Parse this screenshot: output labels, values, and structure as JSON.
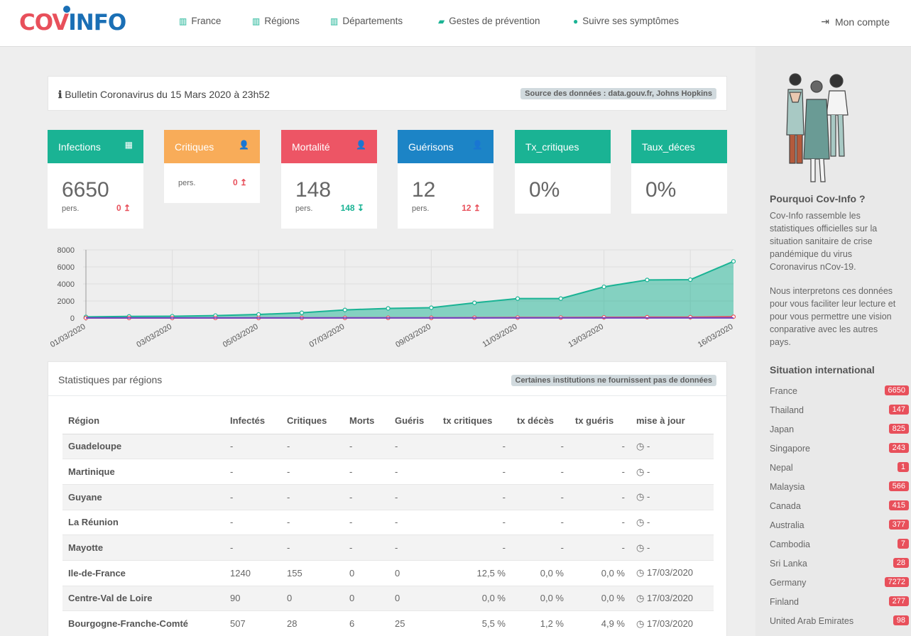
{
  "header": {
    "logo_cov": "COV",
    "logo_info": "INFO",
    "nav": [
      "France",
      "Régions",
      "Départements",
      "Gestes de prévention",
      "Suivre ses symptômes"
    ],
    "account": "Mon compte"
  },
  "bulletin": {
    "title": "Bulletin Coronavirus du 15 Mars 2020 à 23h52",
    "source": "Source des données : data.gouv.fr, Johns Hopkins"
  },
  "cards": [
    {
      "label": "Infections",
      "value": "6650",
      "unit": "pers.",
      "delta": "0 ↥",
      "color": "#1ab394",
      "delta_color": "#e8505b"
    },
    {
      "label": "Critiques",
      "value": "",
      "unit": "pers.",
      "delta": "0 ↥",
      "color": "#f8ac59",
      "delta_color": "#e8505b"
    },
    {
      "label": "Mortalité",
      "value": "148",
      "unit": "pers.",
      "delta": "148 ↧",
      "color": "#ed5565",
      "delta_color": "#1ab394"
    },
    {
      "label": "Guérisons",
      "value": "12",
      "unit": "pers.",
      "delta": "12 ↥",
      "color": "#1c84c6",
      "delta_color": "#e8505b"
    },
    {
      "label": "Tx_critiques",
      "value": "0%",
      "unit": "",
      "delta": "",
      "color": "#1ab394",
      "delta_color": "#e8505b"
    },
    {
      "label": "Taux_déces",
      "value": "0%",
      "unit": "",
      "delta": "",
      "color": "#1ab394",
      "delta_color": "#e8505b"
    }
  ],
  "chart_data": {
    "type": "area",
    "x": [
      "01/03/2020",
      "02/03/2020",
      "03/03/2020",
      "04/03/2020",
      "05/03/2020",
      "06/03/2020",
      "07/03/2020",
      "08/03/2020",
      "09/03/2020",
      "10/03/2020",
      "11/03/2020",
      "12/03/2020",
      "13/03/2020",
      "14/03/2020",
      "15/03/2020",
      "16/03/2020"
    ],
    "tick_labels": [
      "01/03/2020",
      "03/03/2020",
      "05/03/2020",
      "07/03/2020",
      "09/03/2020",
      "11/03/2020",
      "13/03/2020",
      "16/03/2020"
    ],
    "yticks": [
      "8000",
      "6000",
      "4000",
      "2000",
      "0"
    ],
    "ylim": [
      0,
      8000
    ],
    "series": [
      {
        "values": [
          130,
          190,
          212,
          285,
          420,
          613,
          949,
          1126,
          1209,
          1784,
          2281,
          2281,
          3661,
          4469,
          4499,
          6650
        ],
        "color": "#1ab394"
      },
      {
        "values": [
          2,
          2,
          4,
          4,
          7,
          9,
          16,
          19,
          19,
          33,
          48,
          48,
          79,
          91,
          91,
          148
        ],
        "color": "#e8505b"
      },
      {
        "values": [
          12,
          12,
          12,
          12,
          12,
          12,
          12,
          12,
          12,
          12,
          12,
          12,
          12,
          12,
          12,
          12
        ],
        "color": "#6f42c1"
      }
    ]
  },
  "regions": {
    "title": "Statistiques par régions",
    "note": "Certaines institutions ne fournissent pas de données",
    "headers": [
      "Région",
      "Infectés",
      "Critiques",
      "Morts",
      "Guéris",
      "tx critiques",
      "tx décès",
      "tx guéris",
      "mise à jour"
    ],
    "rows": [
      [
        "Guadeloupe",
        "-",
        "-",
        "-",
        "-",
        "-",
        "-",
        "-",
        "-"
      ],
      [
        "Martinique",
        "-",
        "-",
        "-",
        "-",
        "-",
        "-",
        "-",
        "-"
      ],
      [
        "Guyane",
        "-",
        "-",
        "-",
        "-",
        "-",
        "-",
        "-",
        "-"
      ],
      [
        "La Réunion",
        "-",
        "-",
        "-",
        "-",
        "-",
        "-",
        "-",
        "-"
      ],
      [
        "Mayotte",
        "-",
        "-",
        "-",
        "-",
        "-",
        "-",
        "-",
        "-"
      ],
      [
        "Ile-de-France",
        "1240",
        "155",
        "0",
        "0",
        "12,5 %",
        "0,0 %",
        "0,0 %",
        "17/03/2020"
      ],
      [
        "Centre-Val de Loire",
        "90",
        "0",
        "0",
        "0",
        "0,0 %",
        "0,0 %",
        "0,0 %",
        "17/03/2020"
      ],
      [
        "Bourgogne-Franche-Comté",
        "507",
        "28",
        "6",
        "25",
        "5,5 %",
        "1,2 %",
        "4,9 %",
        "17/03/2020"
      ]
    ]
  },
  "sidebar": {
    "why_title": "Pourquoi Cov-Info ?",
    "why_p1": "Cov-Info rassemble les statistiques officielles sur la situation sanitaire de crise pandémique du virus Coronavirus nCov-19.",
    "why_p2": "Nous interpretons ces données pour vous faciliter leur lecture et pour vous permettre une vision conparative avec les autres pays.",
    "intl_title": "Situation international",
    "countries": [
      {
        "name": "France",
        "count": "6650"
      },
      {
        "name": "Thailand",
        "count": "147"
      },
      {
        "name": "Japan",
        "count": "825"
      },
      {
        "name": "Singapore",
        "count": "243"
      },
      {
        "name": "Nepal",
        "count": "1"
      },
      {
        "name": "Malaysia",
        "count": "566"
      },
      {
        "name": "Canada",
        "count": "415"
      },
      {
        "name": "Australia",
        "count": "377"
      },
      {
        "name": "Cambodia",
        "count": "7"
      },
      {
        "name": "Sri Lanka",
        "count": "28"
      },
      {
        "name": "Germany",
        "count": "7272"
      },
      {
        "name": "Finland",
        "count": "277"
      },
      {
        "name": "United Arab Emirates",
        "count": "98"
      }
    ]
  }
}
